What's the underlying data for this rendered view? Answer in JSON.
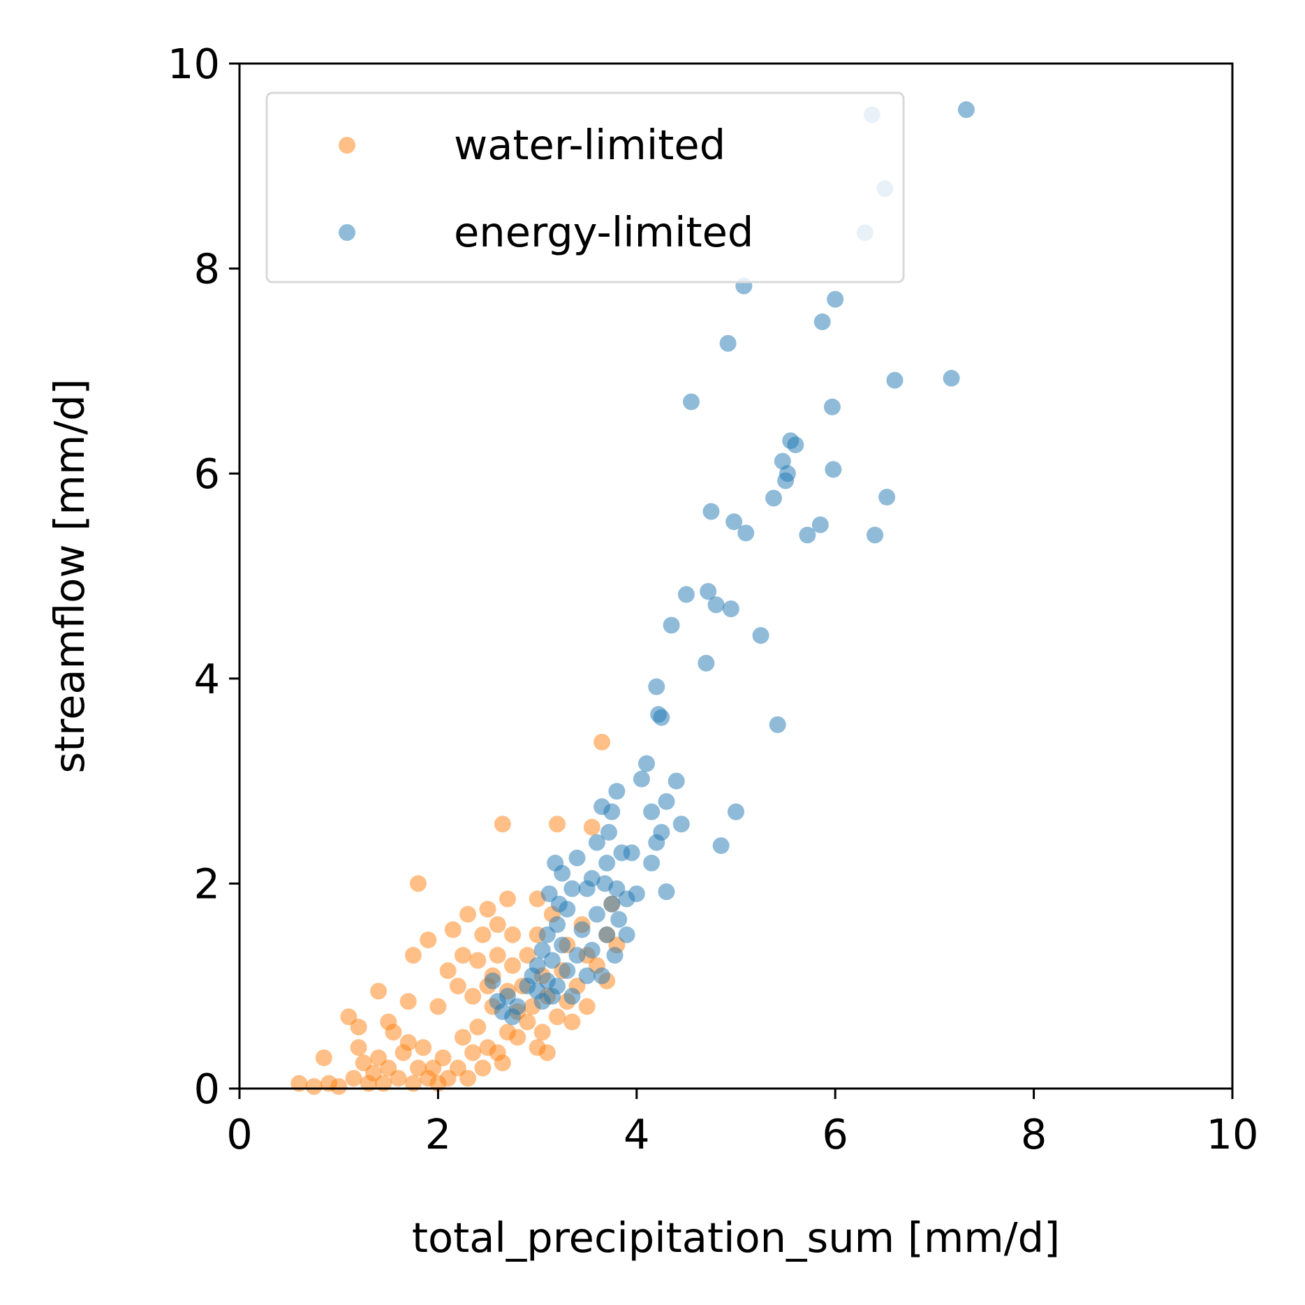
{
  "chart_data": {
    "type": "scatter",
    "xlabel": "total_precipitation_sum [mm/d]",
    "ylabel": "streamflow [mm/d]",
    "xlim": [
      0,
      10
    ],
    "ylim": [
      0,
      10
    ],
    "xticks": [
      "0",
      "2",
      "4",
      "6",
      "8",
      "10"
    ],
    "yticks": [
      "0",
      "2",
      "4",
      "6",
      "8",
      "10"
    ],
    "grid": false,
    "legend_position": "upper-left",
    "series": [
      {
        "name": "water-limited",
        "color": "#ff7f0e",
        "points": [
          [
            0.6,
            0.05
          ],
          [
            0.75,
            0.02
          ],
          [
            0.85,
            0.3
          ],
          [
            0.9,
            0.05
          ],
          [
            1.0,
            0.02
          ],
          [
            1.1,
            0.7
          ],
          [
            1.15,
            0.1
          ],
          [
            1.2,
            0.4
          ],
          [
            1.2,
            0.6
          ],
          [
            1.25,
            0.25
          ],
          [
            1.3,
            0.05
          ],
          [
            1.35,
            0.15
          ],
          [
            1.4,
            0.95
          ],
          [
            1.4,
            0.3
          ],
          [
            1.45,
            0.05
          ],
          [
            1.5,
            0.65
          ],
          [
            1.5,
            0.2
          ],
          [
            1.55,
            0.55
          ],
          [
            1.6,
            0.1
          ],
          [
            1.65,
            0.35
          ],
          [
            1.7,
            0.85
          ],
          [
            1.7,
            0.45
          ],
          [
            1.75,
            0.05
          ],
          [
            1.75,
            1.3
          ],
          [
            1.8,
            0.2
          ],
          [
            1.8,
            2.0
          ],
          [
            1.85,
            0.4
          ],
          [
            1.9,
            0.1
          ],
          [
            1.9,
            1.45
          ],
          [
            1.95,
            0.2
          ],
          [
            2.0,
            0.05
          ],
          [
            2.0,
            0.8
          ],
          [
            2.05,
            0.3
          ],
          [
            2.1,
            0.1
          ],
          [
            2.1,
            1.15
          ],
          [
            2.15,
            1.55
          ],
          [
            2.2,
            1.0
          ],
          [
            2.2,
            0.2
          ],
          [
            2.25,
            1.3
          ],
          [
            2.25,
            0.5
          ],
          [
            2.3,
            0.1
          ],
          [
            2.3,
            1.7
          ],
          [
            2.35,
            0.35
          ],
          [
            2.35,
            0.9
          ],
          [
            2.4,
            1.25
          ],
          [
            2.4,
            0.6
          ],
          [
            2.45,
            0.2
          ],
          [
            2.45,
            1.5
          ],
          [
            2.5,
            1.75
          ],
          [
            2.5,
            0.4
          ],
          [
            2.5,
            1.0
          ],
          [
            2.55,
            0.8
          ],
          [
            2.55,
            1.1
          ],
          [
            2.6,
            1.3
          ],
          [
            2.6,
            0.35
          ],
          [
            2.6,
            1.6
          ],
          [
            2.65,
            2.58
          ],
          [
            2.65,
            0.25
          ],
          [
            2.7,
            0.55
          ],
          [
            2.7,
            0.95
          ],
          [
            2.7,
            1.85
          ],
          [
            2.75,
            1.5
          ],
          [
            2.75,
            1.2
          ],
          [
            2.8,
            0.75
          ],
          [
            2.8,
            0.5
          ],
          [
            2.85,
            1.0
          ],
          [
            2.9,
            0.65
          ],
          [
            2.9,
            1.3
          ],
          [
            2.95,
            0.8
          ],
          [
            3.0,
            0.4
          ],
          [
            3.0,
            1.85
          ],
          [
            3.0,
            1.5
          ],
          [
            3.05,
            0.55
          ],
          [
            3.05,
            1.1
          ],
          [
            3.1,
            0.9
          ],
          [
            3.1,
            0.35
          ],
          [
            3.15,
            1.7
          ],
          [
            3.2,
            0.7
          ],
          [
            3.2,
            2.58
          ],
          [
            3.25,
            1.15
          ],
          [
            3.3,
            0.85
          ],
          [
            3.3,
            1.4
          ],
          [
            3.35,
            0.65
          ],
          [
            3.4,
            1.0
          ],
          [
            3.45,
            1.6
          ],
          [
            3.5,
            0.8
          ],
          [
            3.5,
            1.3
          ],
          [
            3.55,
            2.55
          ],
          [
            3.6,
            1.2
          ],
          [
            3.65,
            3.38
          ],
          [
            3.7,
            1.5
          ],
          [
            3.7,
            1.05
          ],
          [
            3.75,
            1.8
          ],
          [
            3.8,
            1.4
          ]
        ]
      },
      {
        "name": "energy-limited",
        "color": "#1f77b4",
        "points": [
          [
            2.55,
            1.05
          ],
          [
            2.6,
            0.85
          ],
          [
            2.65,
            0.75
          ],
          [
            2.7,
            0.9
          ],
          [
            2.75,
            0.7
          ],
          [
            2.8,
            0.8
          ],
          [
            2.9,
            1.0
          ],
          [
            2.95,
            1.1
          ],
          [
            3.0,
            0.95
          ],
          [
            3.0,
            1.2
          ],
          [
            3.05,
            1.35
          ],
          [
            3.05,
            0.85
          ],
          [
            3.1,
            1.5
          ],
          [
            3.1,
            1.05
          ],
          [
            3.12,
            1.9
          ],
          [
            3.15,
            1.25
          ],
          [
            3.15,
            0.9
          ],
          [
            3.18,
            2.2
          ],
          [
            3.2,
            1.6
          ],
          [
            3.2,
            1.0
          ],
          [
            3.22,
            1.8
          ],
          [
            3.25,
            1.4
          ],
          [
            3.25,
            2.1
          ],
          [
            3.3,
            1.15
          ],
          [
            3.3,
            1.75
          ],
          [
            3.35,
            1.95
          ],
          [
            3.35,
            0.9
          ],
          [
            3.4,
            1.3
          ],
          [
            3.4,
            2.25
          ],
          [
            3.45,
            1.55
          ],
          [
            3.5,
            1.95
          ],
          [
            3.5,
            1.1
          ],
          [
            3.55,
            2.05
          ],
          [
            3.55,
            1.35
          ],
          [
            3.6,
            1.7
          ],
          [
            3.6,
            2.4
          ],
          [
            3.65,
            1.1
          ],
          [
            3.65,
            2.75
          ],
          [
            3.68,
            2.0
          ],
          [
            3.7,
            1.5
          ],
          [
            3.7,
            2.2
          ],
          [
            3.72,
            2.5
          ],
          [
            3.75,
            1.8
          ],
          [
            3.75,
            2.7
          ],
          [
            3.78,
            1.3
          ],
          [
            3.8,
            2.9
          ],
          [
            3.8,
            1.95
          ],
          [
            3.82,
            1.65
          ],
          [
            3.85,
            2.3
          ],
          [
            3.9,
            1.5
          ],
          [
            3.9,
            1.85
          ],
          [
            3.95,
            2.3
          ],
          [
            4.0,
            1.9
          ],
          [
            4.05,
            3.02
          ],
          [
            4.1,
            3.17
          ],
          [
            4.15,
            2.2
          ],
          [
            4.15,
            2.7
          ],
          [
            4.2,
            2.4
          ],
          [
            4.2,
            3.92
          ],
          [
            4.22,
            3.65
          ],
          [
            4.25,
            2.5
          ],
          [
            4.25,
            3.62
          ],
          [
            4.3,
            2.8
          ],
          [
            4.3,
            1.92
          ],
          [
            4.35,
            4.52
          ],
          [
            4.4,
            3.0
          ],
          [
            4.45,
            2.58
          ],
          [
            4.5,
            4.82
          ],
          [
            4.55,
            6.7
          ],
          [
            4.7,
            4.15
          ],
          [
            4.72,
            4.85
          ],
          [
            4.75,
            5.63
          ],
          [
            4.8,
            4.72
          ],
          [
            4.85,
            2.37
          ],
          [
            4.92,
            7.27
          ],
          [
            4.95,
            4.68
          ],
          [
            4.98,
            5.53
          ],
          [
            5.0,
            2.7
          ],
          [
            5.08,
            7.83
          ],
          [
            5.1,
            5.42
          ],
          [
            5.25,
            4.42
          ],
          [
            5.38,
            5.76
          ],
          [
            5.42,
            3.55
          ],
          [
            5.47,
            6.12
          ],
          [
            5.5,
            5.93
          ],
          [
            5.52,
            6.0
          ],
          [
            5.55,
            6.32
          ],
          [
            5.6,
            6.28
          ],
          [
            5.72,
            5.4
          ],
          [
            5.85,
            5.5
          ],
          [
            5.87,
            7.48
          ],
          [
            5.97,
            6.65
          ],
          [
            5.98,
            6.04
          ],
          [
            6.0,
            7.7
          ],
          [
            6.3,
            8.35
          ],
          [
            6.37,
            9.5
          ],
          [
            6.4,
            5.4
          ],
          [
            6.5,
            8.78
          ],
          [
            6.52,
            5.77
          ],
          [
            6.6,
            6.91
          ],
          [
            7.17,
            6.93
          ],
          [
            7.32,
            9.55
          ]
        ]
      }
    ]
  }
}
